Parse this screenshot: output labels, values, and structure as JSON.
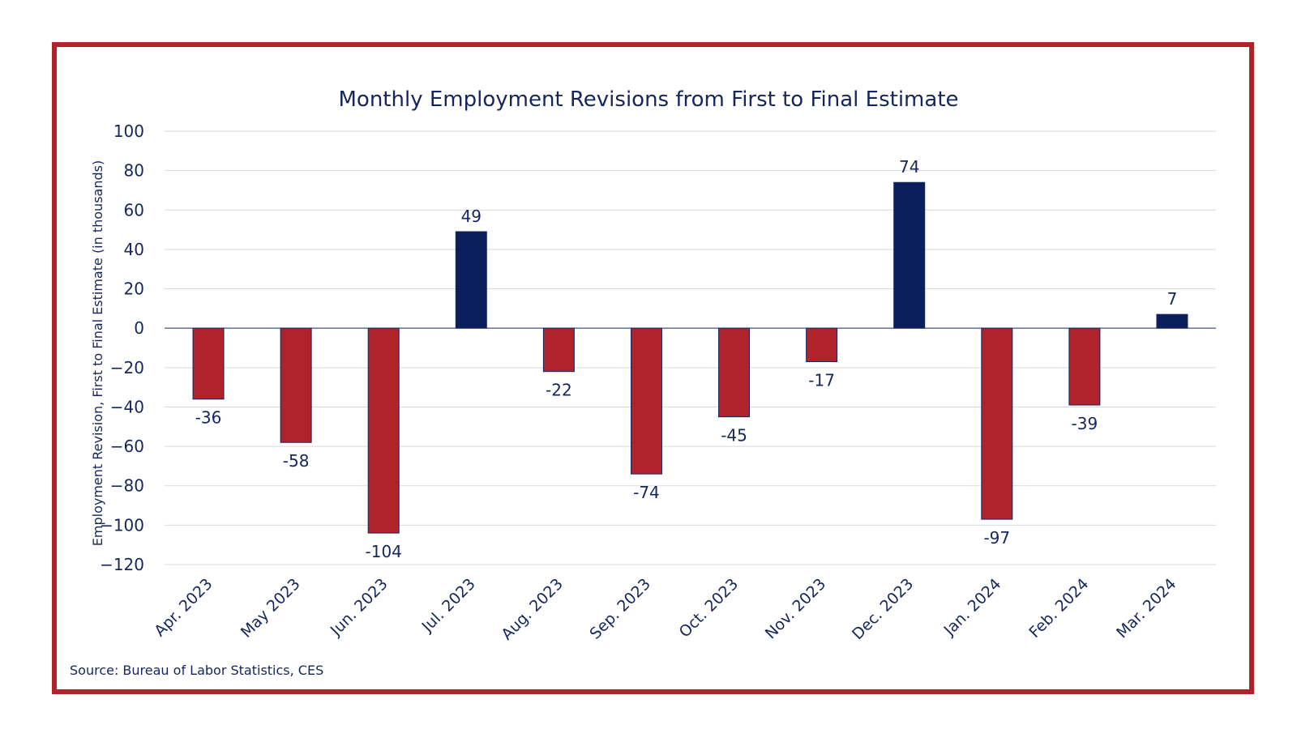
{
  "chart_data": {
    "type": "bar",
    "title": "Monthly Employment Revisions from First to Final Estimate",
    "xlabel": "",
    "ylabel": "Employment Revision, First to Final Estimate (in thousands)",
    "categories": [
      "Apr. 2023",
      "May 2023",
      "Jun. 2023",
      "Jul. 2023",
      "Aug. 2023",
      "Sep. 2023",
      "Oct. 2023",
      "Nov. 2023",
      "Dec. 2023",
      "Jan. 2024",
      "Feb. 2024",
      "Mar. 2024"
    ],
    "values": [
      -36,
      -58,
      -104,
      49,
      -22,
      -74,
      -45,
      -17,
      74,
      -97,
      -39,
      7
    ],
    "data_labels": [
      "-36",
      "-58",
      "-104",
      "49",
      "-22",
      "-74",
      "-45",
      "-17",
      "74",
      "-97",
      "-39",
      "7"
    ],
    "ylim": [
      -120,
      100
    ],
    "yticks": [
      100,
      80,
      60,
      40,
      20,
      0,
      -20,
      -40,
      -60,
      -80,
      -100,
      -120
    ],
    "ytick_labels": [
      "100",
      "80",
      "60",
      "40",
      "20",
      "0",
      "−20",
      "−40",
      "−60",
      "−80",
      "−100",
      "−120"
    ],
    "grid": true,
    "legend": "none",
    "colors": {
      "positive": "#0b1f5c",
      "negative": "#b0232a",
      "text": "#14265c",
      "grid": "#d9d9d9",
      "frame": "#b0232a"
    }
  },
  "source": "Source: Bureau of Labor Statistics, CES"
}
